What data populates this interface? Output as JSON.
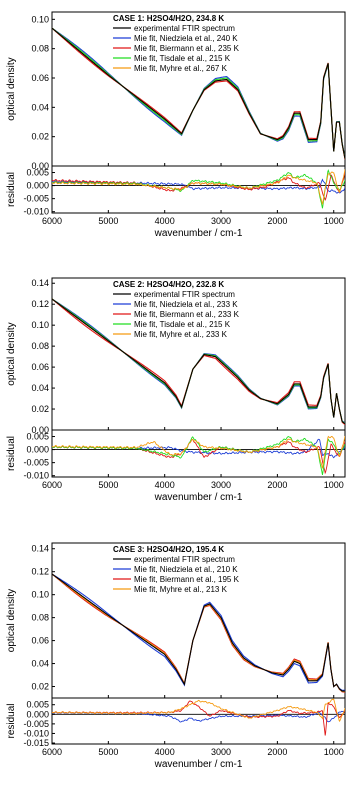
{
  "chart_data": [
    {
      "type": "line",
      "title": "CASE 1: H2SO4/H2O, 234.8 K",
      "xlabel": "wavenumber / cm-1",
      "ylabel_top": "optical density",
      "ylabel_bottom": "residual",
      "xlim": [
        6000,
        800
      ],
      "x_ticks": [
        6000,
        5000,
        4000,
        3000,
        2000,
        1000
      ],
      "top_ylim": [
        0.0,
        0.105
      ],
      "top_ticks": [
        "0.00",
        "0.02",
        "0.04",
        "0.06",
        "0.08",
        "0.10"
      ],
      "bottom_ylim": [
        -0.0105,
        0.0075
      ],
      "bottom_ticks": [
        "0.005",
        "0.000",
        "-0.005",
        "-0.010"
      ],
      "legend": [
        {
          "name": "experimental FTIR spectrum",
          "color": "#000000"
        },
        {
          "name": "Mie fit, Niedziela et al., 240 K",
          "color": "#1f3fd6"
        },
        {
          "name": "Mie fit, Biermann et al., 235 K",
          "color": "#e01818"
        },
        {
          "name": "Mie fit, Tisdale et al., 215 K",
          "color": "#22dd22"
        },
        {
          "name": "Mie fit, Myhre et al., 267 K",
          "color": "#f59a10"
        }
      ],
      "spectrum": {
        "x": [
          6000,
          5000,
          4000,
          3700,
          3500,
          3300,
          3100,
          2900,
          2700,
          2500,
          2300,
          2000,
          1900,
          1800,
          1700,
          1600,
          1450,
          1300,
          1230,
          1180,
          1100,
          1050,
          1000,
          950,
          900,
          850,
          800
        ],
        "y": [
          0.094,
          0.062,
          0.032,
          0.022,
          0.038,
          0.052,
          0.058,
          0.059,
          0.052,
          0.036,
          0.022,
          0.018,
          0.02,
          0.026,
          0.036,
          0.036,
          0.018,
          0.018,
          0.03,
          0.06,
          0.07,
          0.04,
          0.01,
          0.03,
          0.03,
          0.015,
          0.005
        ]
      },
      "fit_offsets": {
        "#1f3fd6": 0.002,
        "#e01818": -0.001,
        "#22dd22": 0.001,
        "#f59a10": 0.0
      },
      "residuals": {
        "#1f3fd6": {
          "x": [
            6000,
            4500,
            3700,
            3500,
            3000,
            2500,
            2000,
            1700,
            1500,
            1250,
            1200,
            1100,
            1000,
            900,
            800
          ],
          "y": [
            0.0015,
            0.001,
            0.0005,
            -0.0012,
            -0.0008,
            -0.001,
            -0.0012,
            -0.0008,
            -0.0012,
            -0.0006,
            0.0025,
            -0.002,
            -0.002,
            -0.003,
            -0.001
          ]
        },
        "#e01818": {
          "x": [
            6000,
            4500,
            3900,
            3700,
            3500,
            3000,
            2500,
            2200,
            2000,
            1800,
            1700,
            1500,
            1250,
            1150,
            1050,
            900,
            800
          ],
          "y": [
            0.002,
            0.001,
            -0.002,
            -0.001,
            0.001,
            0.0005,
            -0.0015,
            -0.0005,
            0.0015,
            0.003,
            0.001,
            -0.001,
            0.001,
            -0.006,
            0.004,
            -0.003,
            0.005
          ]
        },
        "#22dd22": {
          "x": [
            6000,
            4500,
            3900,
            3700,
            3500,
            3000,
            2500,
            2000,
            1800,
            1700,
            1500,
            1300,
            1200,
            1100,
            1000,
            900,
            800
          ],
          "y": [
            0.0012,
            0.0008,
            -0.001,
            -0.002,
            0.002,
            0.001,
            -0.001,
            0.002,
            0.005,
            0.003,
            0.004,
            0.001,
            -0.0085,
            0.006,
            0.001,
            -0.002,
            0.002
          ]
        },
        "#f59a10": {
          "x": [
            6000,
            4500,
            3900,
            3700,
            3500,
            3000,
            2500,
            2000,
            1800,
            1700,
            1500,
            1300,
            1200,
            1100,
            1000,
            900,
            800
          ],
          "y": [
            0.001,
            0.0005,
            -0.001,
            -0.0015,
            0.001,
            0.0005,
            -0.001,
            0.001,
            0.004,
            0.003,
            0.002,
            0.001,
            -0.007,
            0.0045,
            0.005,
            -0.003,
            0.006
          ]
        }
      }
    },
    {
      "type": "line",
      "title": "CASE 2: H2SO4/H2O, 232.8 K",
      "xlabel": "wavenumber / cm-1",
      "ylabel_top": "optical density",
      "ylabel_bottom": "residual",
      "xlim": [
        6000,
        800
      ],
      "x_ticks": [
        6000,
        5000,
        4000,
        3000,
        2000,
        1000
      ],
      "top_ylim": [
        0.0,
        0.145
      ],
      "top_ticks": [
        "0.00",
        "0.02",
        "0.04",
        "0.06",
        "0.08",
        "0.10",
        "0.12",
        "0.14"
      ],
      "bottom_ylim": [
        -0.0105,
        0.0075
      ],
      "bottom_ticks": [
        "0.005",
        "0.000",
        "-0.005",
        "-0.010"
      ],
      "legend": [
        {
          "name": "experimental FTIR spectrum",
          "color": "#000000"
        },
        {
          "name": "Mie fit, Niedziela et al., 233 K",
          "color": "#1f3fd6"
        },
        {
          "name": "Mie fit, Biermann et al., 233 K",
          "color": "#e01818"
        },
        {
          "name": "Mie fit, Tisdale et al., 215 K",
          "color": "#22dd22"
        },
        {
          "name": "Mie fit, Myhre et al., 233 K",
          "color": "#f59a10"
        }
      ],
      "spectrum": {
        "x": [
          6000,
          5000,
          4000,
          3800,
          3700,
          3500,
          3300,
          3100,
          2900,
          2700,
          2500,
          2300,
          2000,
          1800,
          1700,
          1600,
          1450,
          1300,
          1230,
          1180,
          1100,
          1050,
          1000,
          950,
          900,
          850,
          800
        ],
        "y": [
          0.125,
          0.085,
          0.045,
          0.032,
          0.022,
          0.058,
          0.072,
          0.07,
          0.06,
          0.05,
          0.038,
          0.03,
          0.025,
          0.034,
          0.044,
          0.044,
          0.022,
          0.022,
          0.032,
          0.05,
          0.063,
          0.03,
          0.012,
          0.035,
          0.02,
          0.008,
          0.006
        ]
      },
      "fit_offsets": {
        "#1f3fd6": 0.002,
        "#e01818": -0.002,
        "#22dd22": 0.001,
        "#f59a10": 0.0
      },
      "residuals": {
        "#1f3fd6": {
          "x": [
            6000,
            4500,
            3900,
            3700,
            3500,
            3000,
            2500,
            2000,
            1700,
            1500,
            1250,
            1200,
            1100,
            1000,
            900,
            800
          ],
          "y": [
            0.001,
            0.0005,
            0.0008,
            -0.0005,
            -0.001,
            -0.0015,
            -0.001,
            -0.0008,
            -0.0015,
            -0.001,
            0.004,
            -0.002,
            -0.0015,
            -0.003,
            -0.001,
            0.001
          ]
        },
        "#e01818": {
          "x": [
            6000,
            4500,
            3900,
            3700,
            3500,
            3300,
            3000,
            2500,
            2000,
            1800,
            1700,
            1500,
            1250,
            1150,
            1050,
            900,
            800
          ],
          "y": [
            0.001,
            0.0005,
            -0.003,
            -0.0015,
            0.004,
            -0.003,
            0.001,
            -0.001,
            0.001,
            0.003,
            0.001,
            -0.001,
            0.001,
            -0.0095,
            0.002,
            -0.003,
            0.003
          ]
        },
        "#22dd22": {
          "x": [
            6000,
            4500,
            3900,
            3700,
            3500,
            3300,
            3000,
            2500,
            2000,
            1800,
            1700,
            1500,
            1300,
            1200,
            1100,
            1000,
            900,
            800
          ],
          "y": [
            0.001,
            0.0005,
            -0.002,
            -0.003,
            0.005,
            -0.001,
            0.001,
            -0.001,
            0.002,
            0.005,
            0.003,
            0.004,
            0.001,
            -0.0095,
            0.004,
            0.002,
            -0.002,
            0.002
          ]
        },
        "#f59a10": {
          "x": [
            6000,
            4500,
            4200,
            3900,
            3700,
            3500,
            3300,
            3000,
            2500,
            2000,
            1800,
            1700,
            1500,
            1300,
            1200,
            1100,
            1000,
            900,
            800
          ],
          "y": [
            0.0012,
            0.0008,
            0.003,
            -0.002,
            -0.0015,
            0.004,
            0.001,
            0.0005,
            -0.001,
            0.001,
            0.004,
            0.003,
            0.002,
            0.001,
            -0.007,
            0.005,
            0.0045,
            -0.003,
            0.005
          ]
        }
      }
    },
    {
      "type": "line",
      "title": "CASE 3: H2SO4/H2O, 195.4 K",
      "xlabel": "wavenumber / cm-1",
      "ylabel_top": "optical density",
      "ylabel_bottom": "residual",
      "xlim": [
        6000,
        800
      ],
      "x_ticks": [
        6000,
        5000,
        4000,
        3000,
        2000,
        1000
      ],
      "top_ylim": [
        0.01,
        0.145
      ],
      "top_ticks": [
        "0.02",
        "0.04",
        "0.06",
        "0.08",
        "0.10",
        "0.12",
        "0.14"
      ],
      "bottom_ylim": [
        -0.0155,
        0.0085
      ],
      "bottom_ticks": [
        "0.005",
        "0.000",
        "-0.005",
        "-0.010",
        "-0.015"
      ],
      "legend": [
        {
          "name": "experimental FTIR spectrum",
          "color": "#000000"
        },
        {
          "name": "Mie fit, Niedziela et al., 210 K",
          "color": "#1f3fd6"
        },
        {
          "name": "Mie fit, Biermann et al., 195 K",
          "color": "#e01818"
        },
        {
          "name": "Mie fit, Myhre et al., 213 K",
          "color": "#f59a10"
        }
      ],
      "spectrum": {
        "x": [
          6000,
          5000,
          4000,
          3800,
          3650,
          3500,
          3300,
          3200,
          3000,
          2800,
          2600,
          2400,
          2100,
          1900,
          1800,
          1700,
          1600,
          1450,
          1300,
          1200,
          1100,
          1050,
          1000,
          950,
          900,
          850,
          800
        ],
        "y": [
          0.118,
          0.082,
          0.048,
          0.035,
          0.022,
          0.06,
          0.09,
          0.092,
          0.08,
          0.058,
          0.045,
          0.038,
          0.032,
          0.03,
          0.035,
          0.042,
          0.04,
          0.025,
          0.025,
          0.03,
          0.058,
          0.035,
          0.02,
          0.022,
          0.018,
          0.016,
          0.016
        ]
      },
      "fit_offsets": {
        "#1f3fd6": 0.002,
        "#e01818": -0.002,
        "#f59a10": -0.001
      },
      "residuals": {
        "#1f3fd6": {
          "x": [
            6000,
            4500,
            3900,
            3700,
            3550,
            3400,
            3000,
            2500,
            2000,
            1700,
            1500,
            1250,
            1150,
            1100,
            1000,
            900,
            800
          ],
          "y": [
            0.0008,
            0.0005,
            -0.001,
            -0.004,
            -0.002,
            -0.0035,
            -0.001,
            -0.001,
            -0.0005,
            -0.001,
            -0.0015,
            0.001,
            -0.002,
            -0.004,
            -0.002,
            0.001,
            0.002
          ]
        },
        "#e01818": {
          "x": [
            6000,
            4500,
            3900,
            3700,
            3550,
            3400,
            3200,
            3000,
            2500,
            2000,
            1800,
            1600,
            1300,
            1200,
            1150,
            1100,
            1000,
            900,
            800
          ],
          "y": [
            0.001,
            0.0008,
            0.001,
            0.002,
            0.007,
            0.004,
            -0.001,
            0.002,
            -0.0015,
            -0.001,
            0.002,
            0.0005,
            0.001,
            0.002,
            -0.012,
            0.006,
            0.004,
            -0.002,
            0.002
          ]
        },
        "#f59a10": {
          "x": [
            6000,
            4500,
            3900,
            3700,
            3550,
            3400,
            3200,
            3000,
            2500,
            2000,
            1800,
            1600,
            1300,
            1200,
            1150,
            1100,
            1000,
            900,
            800
          ],
          "y": [
            0.001,
            0.0005,
            0.001,
            0.003,
            0.005,
            0.007,
            0.006,
            0.003,
            -0.002,
            0.002,
            0.004,
            0.003,
            0.001,
            -0.002,
            0.005,
            0.006,
            0.008,
            -0.004,
            0.003
          ]
        }
      }
    }
  ]
}
